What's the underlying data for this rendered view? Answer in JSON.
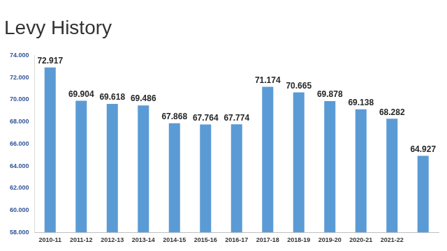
{
  "chart_data": {
    "type": "bar",
    "title": "Levy History",
    "categories": [
      "2010-11",
      "2011-12",
      "2012-13",
      "2013-14",
      "2014-15",
      "2015-16",
      "2016-17",
      "2017-18",
      "2018-19",
      "2019-20",
      "2020-21",
      "2021-22",
      null
    ],
    "values": [
      72.917,
      69.904,
      69.618,
      69.486,
      67.868,
      67.764,
      67.774,
      71.174,
      70.665,
      69.878,
      69.138,
      68.282,
      64.927
    ],
    "color": "#5b9bd5",
    "ylim": [
      58,
      74
    ],
    "yticks": [
      {
        "value": 58,
        "label": "58.000"
      },
      {
        "value": 60,
        "label": "60.000"
      },
      {
        "value": 62,
        "label": "62.000"
      },
      {
        "value": 64,
        "label": "64.000"
      },
      {
        "value": 66,
        "label": "66.000"
      },
      {
        "value": 68,
        "label": "68.000"
      },
      {
        "value": 70,
        "label": "70.000"
      },
      {
        "value": 72,
        "label": "72.000"
      },
      {
        "value": 74,
        "label": "74.000"
      }
    ],
    "grid": false,
    "data_labels": true
  }
}
